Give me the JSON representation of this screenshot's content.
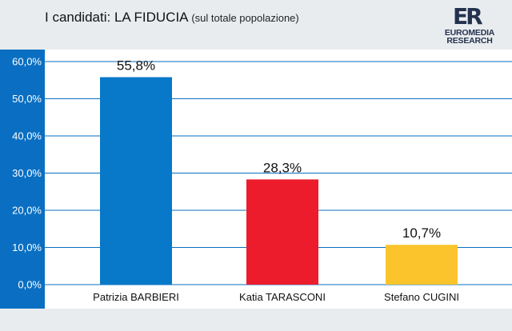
{
  "header": {
    "title": "I candidati: LA FIDUCIA",
    "subtitle": "(sul totale popolazione)"
  },
  "logo": {
    "mark": "ER",
    "line1": "EUROMEDIA",
    "line2": "RESEARCH"
  },
  "colors": {
    "axis_strip": "#0a6fc2",
    "grid": "#0a6fc2"
  },
  "chart_data": {
    "type": "bar",
    "title": "I candidati: LA FIDUCIA",
    "subtitle": "(sul totale popolazione)",
    "categories": [
      "Patrizia BARBIERI",
      "Katia TARASCONI",
      "Stefano CUGINI"
    ],
    "values": [
      55.8,
      28.3,
      10.7
    ],
    "value_labels": [
      "55,8%",
      "28,3%",
      "10,7%"
    ],
    "bar_colors": [
      "#0878c8",
      "#ec1c2c",
      "#fcc42c"
    ],
    "ylim": [
      0,
      60
    ],
    "yticks": [
      0,
      10,
      20,
      30,
      40,
      50,
      60
    ],
    "ytick_labels": [
      "0,0%",
      "10,0%",
      "20,0%",
      "30,0%",
      "40,0%",
      "50,0%",
      "60,0%"
    ],
    "grid": true,
    "legend": "none"
  }
}
